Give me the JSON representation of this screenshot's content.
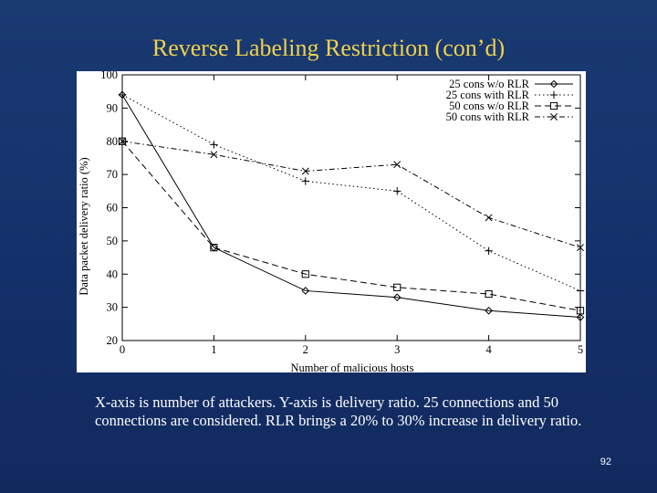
{
  "slide": {
    "title": "Reverse Labeling Restriction (con’d)",
    "caption": "X-axis is number of attackers. Y-axis is delivery ratio. 25 connections and 50 connections are considered. RLR brings a 20% to 30% increase in delivery ratio.",
    "page_number": "92"
  },
  "colors": {
    "background": "#14306a",
    "title": "#f0d24a",
    "caption": "#ffffff",
    "plot_ink": "#000000"
  },
  "chart_data": {
    "type": "line",
    "title": "",
    "xlabel": "Number of malicious hosts",
    "ylabel": "Data packet delivery ratio (%)",
    "xlim": [
      0,
      5
    ],
    "ylim": [
      20,
      100
    ],
    "x_ticks": [
      0,
      1,
      2,
      3,
      4,
      5
    ],
    "y_ticks": [
      20,
      30,
      40,
      50,
      60,
      70,
      80,
      90,
      100
    ],
    "legend_position": "top-right",
    "grid": false,
    "x": [
      0,
      1,
      2,
      3,
      4,
      5
    ],
    "series": [
      {
        "name": "25 cons w/o RLR",
        "marker": "diamond",
        "line": "solid",
        "values": [
          94,
          48,
          35,
          33,
          29,
          27
        ]
      },
      {
        "name": "25 cons with RLR",
        "marker": "plus",
        "line": "dotted",
        "values": [
          94,
          79,
          68,
          65,
          47,
          35
        ]
      },
      {
        "name": "50 cons w/o RLR",
        "marker": "square",
        "line": "dashed",
        "values": [
          80,
          48,
          40,
          36,
          34,
          29
        ]
      },
      {
        "name": "50 cons with RLR",
        "marker": "cross",
        "line": "dashdot",
        "values": [
          80,
          76,
          71,
          73,
          57,
          48
        ]
      }
    ]
  }
}
